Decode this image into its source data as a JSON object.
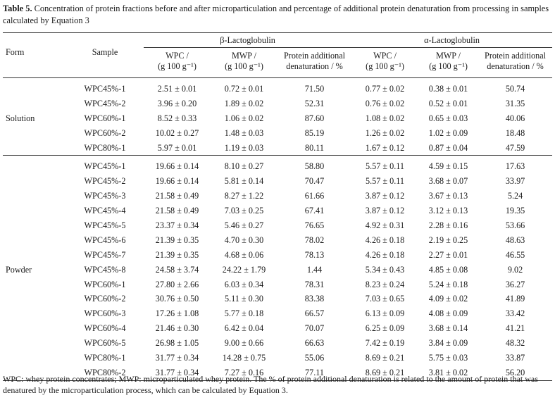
{
  "caption": {
    "label": "Table 5.",
    "text": " Concentration of protein fractions before and after microparticulation and percentage of additional protein denaturation from processing in samples calculated by Equation 3"
  },
  "headers": {
    "form": "Form",
    "sample": "Sample",
    "group1": "β-Lactoglobulin",
    "group2": "α-Lactoglobulin",
    "wpc_line1": "WPC /",
    "wpc_line2": "(g 100 g⁻¹)",
    "mwp_line1": "MWP /",
    "mwp_line2": "(g 100 g⁻¹)",
    "pad_line1": "Protein additional",
    "pad_line2": "denaturation / %"
  },
  "groups": {
    "solution": {
      "form": "Solution",
      "rows": [
        {
          "sample": "WPC45%-1",
          "bl_wpc": "2.51 ± 0.01",
          "bl_mwp": "0.72 ± 0.01",
          "bl_pad": "71.50",
          "al_wpc": "0.77 ± 0.02",
          "al_mwp": "0.38 ± 0.01",
          "al_pad": "50.74"
        },
        {
          "sample": "WPC45%-2",
          "bl_wpc": "3.96 ± 0.20",
          "bl_mwp": "1.89 ± 0.02",
          "bl_pad": "52.31",
          "al_wpc": "0.76 ± 0.02",
          "al_mwp": "0.52 ± 0.01",
          "al_pad": "31.35"
        },
        {
          "sample": "WPC60%-1",
          "bl_wpc": "8.52 ± 0.33",
          "bl_mwp": "1.06 ± 0.02",
          "bl_pad": "87.60",
          "al_wpc": "1.08 ± 0.02",
          "al_mwp": "0.65 ± 0.03",
          "al_pad": "40.06"
        },
        {
          "sample": "WPC60%-2",
          "bl_wpc": "10.02 ± 0.27",
          "bl_mwp": "1.48 ± 0.03",
          "bl_pad": "85.19",
          "al_wpc": "1.26 ± 0.02",
          "al_mwp": "1.02 ± 0.09",
          "al_pad": "18.48"
        },
        {
          "sample": "WPC80%-1",
          "bl_wpc": "5.97 ± 0.01",
          "bl_mwp": "1.19 ± 0.03",
          "bl_pad": "80.11",
          "al_wpc": "1.67 ± 0.12",
          "al_mwp": "0.87 ± 0.04",
          "al_pad": "47.59"
        }
      ]
    },
    "powder": {
      "form": "Powder",
      "rows": [
        {
          "sample": "WPC45%-1",
          "bl_wpc": "19.66 ± 0.14",
          "bl_mwp": "8.10 ± 0.27",
          "bl_pad": "58.80",
          "al_wpc": "5.57 ± 0.11",
          "al_mwp": "4.59 ± 0.15",
          "al_pad": "17.63"
        },
        {
          "sample": "WPC45%-2",
          "bl_wpc": "19.66 ± 0.14",
          "bl_mwp": "5.81 ± 0.14",
          "bl_pad": "70.47",
          "al_wpc": "5.57 ± 0.11",
          "al_mwp": "3.68 ± 0.07",
          "al_pad": "33.97"
        },
        {
          "sample": "WPC45%-3",
          "bl_wpc": "21.58 ± 0.49",
          "bl_mwp": "8.27 ± 1.22",
          "bl_pad": "61.66",
          "al_wpc": "3.87 ± 0.12",
          "al_mwp": "3.67 ± 0.13",
          "al_pad": "5.24"
        },
        {
          "sample": "WPC45%-4",
          "bl_wpc": "21.58 ± 0.49",
          "bl_mwp": "7.03 ± 0.25",
          "bl_pad": "67.41",
          "al_wpc": "3.87 ± 0.12",
          "al_mwp": "3.12 ± 0.13",
          "al_pad": "19.35"
        },
        {
          "sample": "WPC45%-5",
          "bl_wpc": "23.37 ± 0.34",
          "bl_mwp": "5.46 ± 0.27",
          "bl_pad": "76.65",
          "al_wpc": "4.92 ± 0.31",
          "al_mwp": "2.28 ± 0.16",
          "al_pad": "53.66"
        },
        {
          "sample": "WPC45%-6",
          "bl_wpc": "21.39 ± 0.35",
          "bl_mwp": "4.70 ± 0.30",
          "bl_pad": "78.02",
          "al_wpc": "4.26 ± 0.18",
          "al_mwp": "2.19 ± 0.25",
          "al_pad": "48.63"
        },
        {
          "sample": "WPC45%-7",
          "bl_wpc": "21.39 ± 0.35",
          "bl_mwp": "4.68 ± 0.06",
          "bl_pad": "78.13",
          "al_wpc": "4.26 ± 0.18",
          "al_mwp": "2.27 ± 0.01",
          "al_pad": "46.55"
        },
        {
          "sample": "WPC45%-8",
          "bl_wpc": "24.58 ± 3.74",
          "bl_mwp": "24.22 ± 1.79",
          "bl_pad": "1.44",
          "al_wpc": "5.34 ± 0.43",
          "al_mwp": "4.85 ± 0.08",
          "al_pad": "9.02"
        },
        {
          "sample": "WPC60%-1",
          "bl_wpc": "27.80 ± 2.66",
          "bl_mwp": "6.03 ± 0.34",
          "bl_pad": "78.31",
          "al_wpc": "8.23 ± 0.24",
          "al_mwp": "5.24 ± 0.18",
          "al_pad": "36.27"
        },
        {
          "sample": "WPC60%-2",
          "bl_wpc": "30.76 ± 0.50",
          "bl_mwp": "5.11 ± 0.30",
          "bl_pad": "83.38",
          "al_wpc": "7.03 ± 0.65",
          "al_mwp": "4.09 ± 0.02",
          "al_pad": "41.89"
        },
        {
          "sample": "WPC60%-3",
          "bl_wpc": "17.26 ± 1.08",
          "bl_mwp": "5.77 ± 0.18",
          "bl_pad": "66.57",
          "al_wpc": "6.13 ± 0.09",
          "al_mwp": "4.08 ± 0.09",
          "al_pad": "33.42"
        },
        {
          "sample": "WPC60%-4",
          "bl_wpc": "21.46 ± 0.30",
          "bl_mwp": "6.42 ± 0.04",
          "bl_pad": "70.07",
          "al_wpc": "6.25 ± 0.09",
          "al_mwp": "3.68 ± 0.14",
          "al_pad": "41.21"
        },
        {
          "sample": "WPC60%-5",
          "bl_wpc": "26.98 ± 1.05",
          "bl_mwp": "9.00 ± 0.66",
          "bl_pad": "66.63",
          "al_wpc": "7.42 ± 0.19",
          "al_mwp": "3.84 ± 0.09",
          "al_pad": "48.32"
        },
        {
          "sample": "WPC80%-1",
          "bl_wpc": "31.77 ± 0.34",
          "bl_mwp": "14.28 ± 0.75",
          "bl_pad": "55.06",
          "al_wpc": "8.69 ± 0.21",
          "al_mwp": "5.75 ± 0.03",
          "al_pad": "33.87"
        },
        {
          "sample": "WPC80%-2",
          "bl_wpc": "31.77 ± 0.34",
          "bl_mwp": "7.27 ± 0.16",
          "bl_pad": "77.11",
          "al_wpc": "8.69 ± 0.21",
          "al_mwp": "3.81 ± 0.02",
          "al_pad": "56.20"
        }
      ]
    }
  },
  "footnote": "WPC: whey protein concentrates; MWP: microparticulated whey protein. The % of protein additional denaturation is related to the amount of protein that was denatured by the microparticulation process, which can be calculated by Equation 3."
}
